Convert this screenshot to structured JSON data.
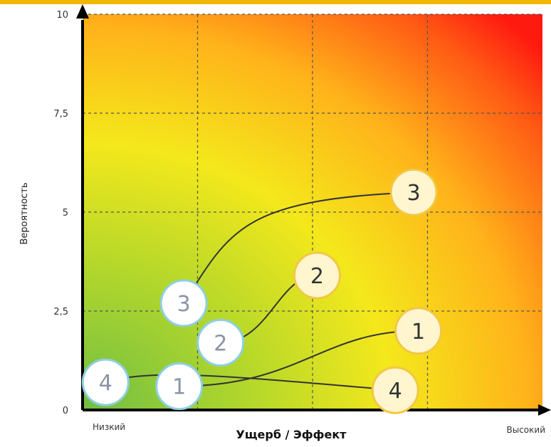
{
  "chart_data": {
    "type": "scatter",
    "title": "",
    "xlabel": "Ущерб / Эффект",
    "ylabel": "Вероятность",
    "x_low_label": "Низкий",
    "x_high_label": "Высокий",
    "xlim": [
      0,
      10
    ],
    "ylim": [
      0,
      10
    ],
    "yticks": [
      "0",
      "2,5",
      "5",
      "7,5",
      "10"
    ],
    "ytick_values": [
      0,
      2.5,
      5,
      7.5,
      10
    ],
    "xgrid_values": [
      2.5,
      5,
      7.5
    ],
    "grid": true,
    "background": "heatmap gradient green (low) to red (high)",
    "colors": {
      "start_marker_fill": "#ffffff",
      "start_marker_stroke": "#8ecfe0",
      "start_marker_text": "#8a94a6",
      "end_marker_fill": "#fff6cf",
      "end_marker_stroke": "#f2c744",
      "end_marker_text": "#333333",
      "axis": "#000000",
      "grid": "#555555",
      "top_bar": "#f2b705"
    },
    "series": [
      {
        "label": "1",
        "start": {
          "x": 2.1,
          "y": 0.6
        },
        "end": {
          "x": 7.3,
          "y": 2.0
        }
      },
      {
        "label": "2",
        "start": {
          "x": 3.0,
          "y": 1.7
        },
        "end": {
          "x": 5.1,
          "y": 3.4
        }
      },
      {
        "label": "3",
        "start": {
          "x": 2.2,
          "y": 2.7
        },
        "end": {
          "x": 7.2,
          "y": 5.5
        }
      },
      {
        "label": "4",
        "start": {
          "x": 0.5,
          "y": 0.7
        },
        "end": {
          "x": 6.8,
          "y": 0.5
        }
      }
    ]
  }
}
